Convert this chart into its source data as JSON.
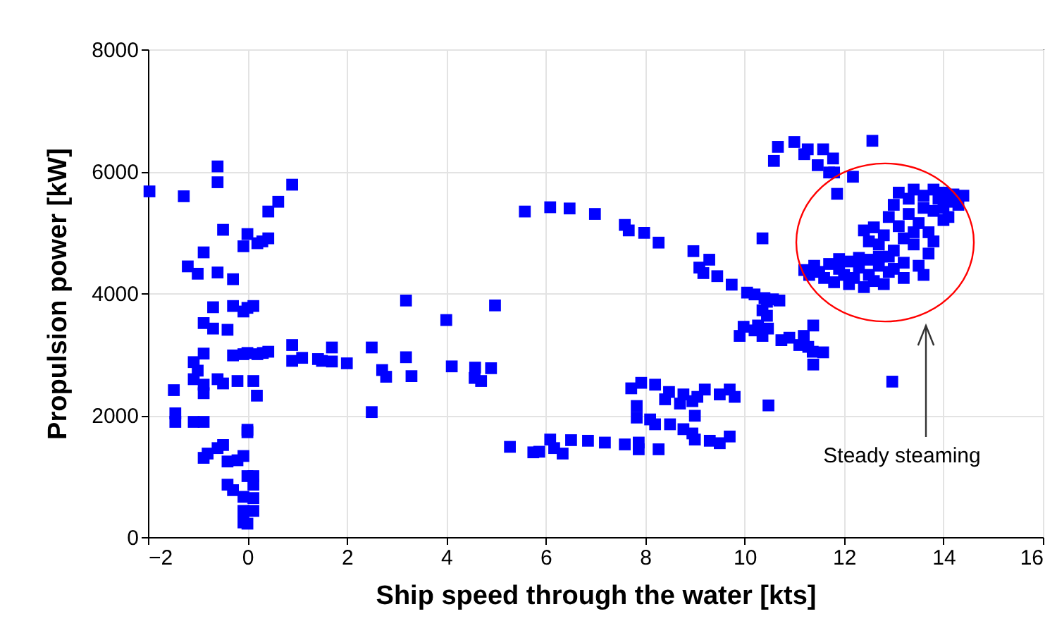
{
  "chart_data": {
    "type": "scatter",
    "xlabel": "Ship speed through the water [kts]",
    "ylabel": "Propulsion power [kW]",
    "xlim": [
      -2,
      16
    ],
    "ylim": [
      0,
      8000
    ],
    "xticks": [
      -2,
      0,
      2,
      4,
      6,
      8,
      10,
      12,
      14,
      16
    ],
    "yticks": [
      0,
      2000,
      4000,
      6000,
      8000
    ],
    "grid": true,
    "marker": "square",
    "annotations": [
      "Steady steaming"
    ],
    "series": [
      {
        "color": "#0000ff",
        "x": [
          -1.97,
          -0.6,
          -0.6,
          -1.28,
          0.9,
          0.62,
          0.42,
          -0.49,
          0,
          -0.08,
          0.2,
          0.3,
          0.42,
          -0.88,
          -1.2,
          -1.0,
          -0.6,
          -0.29,
          -0.69,
          -0.29,
          -0.08,
          0,
          0.12,
          -0.88,
          -0.69,
          -0.4,
          -0.88,
          -1.08,
          -1.0,
          -1.08,
          -0.88,
          -0.88,
          -1.48,
          -0.6,
          -0.49,
          -0.2,
          0.12,
          0.19,
          -0.29,
          -0.08,
          0,
          0.2,
          0.31,
          0.42,
          0.9,
          0.9,
          1.1,
          1.42,
          1.5,
          1.7,
          1.7,
          2.0,
          2.5,
          2.5,
          2.71,
          2.79,
          3.19,
          3.3,
          3.19,
          4.0,
          4.11,
          4.58,
          -1.45,
          -1.45,
          -1.08,
          -0.88,
          0,
          0,
          -0.6,
          -0.49,
          -0.88,
          -0.8,
          -0.4,
          -0.2,
          -0.08,
          -0.4,
          -0.29,
          0,
          0.12,
          0.12,
          -0.08,
          0.12,
          -0.08,
          0.12,
          -0.08,
          0,
          5.58,
          6.09,
          6.48,
          6.99,
          7.59,
          7.67,
          7.98,
          8.27,
          8.97,
          9.29,
          9.09,
          9.17,
          9.45,
          9.74,
          10.05,
          10.4,
          10.45,
          10.36,
          10.36,
          10.45,
          9.98,
          10.27,
          9.9,
          10.36,
          10.74,
          11.1,
          11.19,
          10.48,
          4.98,
          4.9,
          4.57,
          4.7,
          7.72,
          7.92,
          8.2,
          8.48,
          8.77,
          9.05,
          9.2,
          9.5,
          9.8,
          9.7,
          8.4,
          8.7,
          8.95,
          7.83,
          7.83,
          8.1,
          8.2,
          8.5,
          8.77,
          8.95,
          9.0,
          9.0,
          9.3,
          9.5,
          9.7,
          5.28,
          5.75,
          5.87,
          6.09,
          6.17,
          6.34,
          6.51,
          6.85,
          7.19,
          7.59,
          7.87,
          7.87,
          8.27,
          10.67,
          11.0,
          11.27,
          11.2,
          11.58,
          11.78,
          10.59,
          11.47,
          11.7,
          11.8,
          12.18,
          12.57,
          11.86,
          11.38,
          11.58,
          11.38,
          12.97,
          10.2,
          10.57,
          10.7,
          10.2,
          10.47,
          10.9,
          11.28,
          11.37,
          11.2,
          11.3,
          11.4,
          11.5,
          11.6,
          11.7,
          11.8,
          11.9,
          12.0,
          12.1,
          12.1,
          12.2,
          12.3,
          12.4,
          12.5,
          12.5,
          12.6,
          12.7,
          12.8,
          12.9,
          12.9,
          12.3,
          11.9,
          12.4,
          12.6,
          12.5,
          12.7,
          12.8,
          12.9,
          13.0,
          13.0,
          13.1,
          13.1,
          13.2,
          13.2,
          13.3,
          13.3,
          13.4,
          13.4,
          13.5,
          13.5,
          13.6,
          13.6,
          13.7,
          13.7,
          13.8,
          13.8,
          13.9,
          14.0,
          14.0,
          14.1,
          14.2,
          14.3,
          14.4,
          13.4,
          13.0,
          13.8,
          14.0,
          12.7,
          13.2,
          13.6,
          14.1
        ],
        "values": [
          5670,
          6080,
          5820,
          5590,
          5780,
          5500,
          5340,
          5040,
          4970,
          4770,
          4820,
          4850,
          4900,
          4670,
          4440,
          4320,
          4340,
          4230,
          3770,
          3790,
          3700,
          3760,
          3790,
          3510,
          3420,
          3400,
          3010,
          2870,
          2730,
          2590,
          2500,
          2360,
          2410,
          2590,
          2520,
          2560,
          2560,
          2320,
          2980,
          3000,
          3020,
          3000,
          3020,
          3040,
          3150,
          2890,
          2940,
          2920,
          2890,
          2880,
          3110,
          2850,
          3110,
          2050,
          2740,
          2630,
          2950,
          2640,
          3880,
          3560,
          2800,
          2780,
          2030,
          1890,
          1890,
          1890,
          1760,
          1720,
          1460,
          1510,
          1300,
          1370,
          1240,
          1260,
          1330,
          860,
          770,
          1000,
          1000,
          860,
          660,
          640,
          430,
          430,
          240,
          220,
          5340,
          5410,
          5390,
          5300,
          5120,
          5030,
          4990,
          4830,
          4690,
          4550,
          4420,
          4330,
          4280,
          4140,
          4010,
          3920,
          3860,
          4900,
          3720,
          3630,
          3450,
          3470,
          3300,
          3300,
          3230,
          3150,
          3300,
          2160,
          3800,
          2770,
          2610,
          2560,
          2440,
          2530,
          2500,
          2380,
          2340,
          2300,
          2420,
          2340,
          2300,
          2420,
          2260,
          2190,
          2230,
          2150,
          1960,
          1930,
          1850,
          1850,
          1770,
          1700,
          1990,
          1600,
          1580,
          1540,
          1650,
          1480,
          1390,
          1400,
          1600,
          1460,
          1370,
          1590,
          1580,
          1550,
          1520,
          1550,
          1440,
          1440,
          6400,
          6480,
          6360,
          6280,
          6360,
          6210,
          6170,
          6100,
          5980,
          5980,
          5910,
          6500,
          5630,
          3470,
          3030,
          2830,
          2550,
          3980,
          3900,
          3880,
          3390,
          3420,
          3270,
          3120,
          3040,
          4380,
          4300,
          4450,
          4350,
          4250,
          4480,
          4180,
          4400,
          4300,
          4520,
          4150,
          4250,
          4420,
          4100,
          4550,
          4300,
          4200,
          4450,
          4150,
          4350,
          4600,
          4580,
          4560,
          5030,
          5080,
          4850,
          4800,
          4950,
          5250,
          5450,
          4700,
          5650,
          5100,
          4900,
          4500,
          5550,
          5300,
          5700,
          4800,
          5150,
          4450,
          5600,
          5400,
          5000,
          4650,
          5700,
          5350,
          5550,
          5650,
          5400,
          5500,
          5620,
          5450,
          5600,
          5000,
          4400,
          4850,
          5200,
          4600,
          4250,
          4300,
          5250
        ]
      }
    ]
  }
}
